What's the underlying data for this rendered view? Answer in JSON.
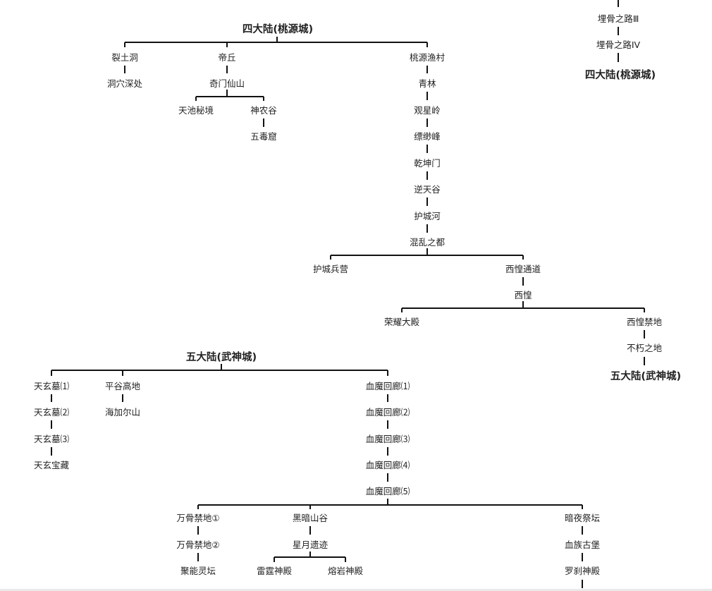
{
  "accent_color": "#e5432d",
  "nodes": {
    "top_title": "四大陆(桃源城)",
    "tr_road3": "埋骨之路Ⅲ",
    "tr_road4": "埋骨之路IV",
    "tr_title": "四大陆(桃源城)",
    "liet": "裂土洞",
    "dongxue": "洞穴深处",
    "diqiu": "帝丘",
    "qimen": "奇门仙山",
    "tianchi": "天池秘境",
    "shennong": "神农谷",
    "wudu": "五毒窟",
    "taoyuan": "桃源渔村",
    "qinglin": "青林",
    "guanxing": "观星岭",
    "piaomiao": "缥缈峰",
    "qiankun": "乾坤门",
    "nitian": "逆天谷",
    "huchenghe": "护城河",
    "hunluan": "混乱之都",
    "hucheng_bing": "护城兵营",
    "xihuang_td": "西惶通道",
    "xihuang": "西惶",
    "rongyao": "荣耀大殿",
    "xihuang_jd": "西惶禁地",
    "buxiu": "不朽之地",
    "mid_title": "五大陆(武神城)",
    "wu_title": "五大陆(武神城)",
    "txm1": "天玄墓⑴",
    "txm2": "天玄墓⑵",
    "txm3": "天玄墓⑶",
    "txbz": "天玄宝藏",
    "pinggu": "平谷高地",
    "haijia": "海加尔山",
    "xm1": "血魔回廊⑴",
    "xm2": "血魔回廊⑵",
    "xm3": "血魔回廊⑶",
    "xm4": "血魔回廊⑷",
    "xm5": "血魔回廊⑸",
    "wangu1": "万骨禁地①",
    "wangu2": "万骨禁地②",
    "juneng": "聚能灵坛",
    "heian": "黑暗山谷",
    "xingyue": "星月遗迹",
    "leiting": "雷霆神殿",
    "rongyan": "熔岩神殿",
    "anye": "暗夜祭坛",
    "xuezu": "血族古堡",
    "luosha": "罗刹神殿"
  }
}
